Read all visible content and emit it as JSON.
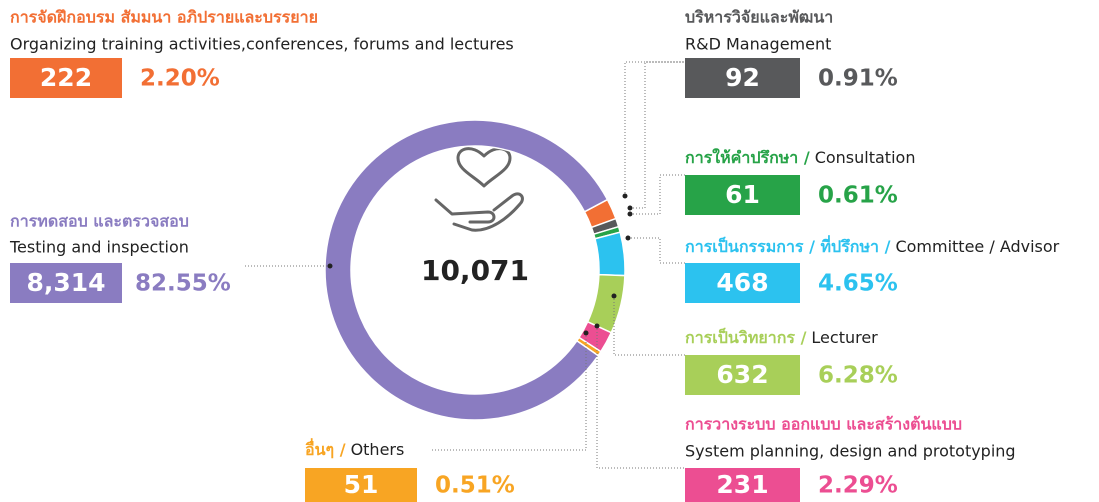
{
  "chart_data": {
    "type": "pie",
    "total": {
      "value": 10071,
      "label": "10,071"
    },
    "items": [
      {
        "name_th": "การจัดฝึกอบรม สัมมนา อภิปรายและบรรยาย",
        "name_en": "Organizing training activities,conferences, forums and lectures",
        "value": 222,
        "value_label": "222",
        "percent": 2.2,
        "percent_label": "2.20%",
        "color": "#f26f34"
      },
      {
        "name_th": "บริหารวิจัยและพัฒนา",
        "name_en": "R&D Management",
        "value": 92,
        "value_label": "92",
        "percent": 0.91,
        "percent_label": "0.91%",
        "color": "#58595b"
      },
      {
        "name_th": "การให้คำปรึกษา /",
        "name_en": "Consultation",
        "value": 61,
        "value_label": "61",
        "percent": 0.61,
        "percent_label": "0.61%",
        "color": "#27a348"
      },
      {
        "name_th": "การเป็นกรรมการ / ที่ปรึกษา /",
        "name_en": "Committee / Advisor",
        "value": 468,
        "value_label": "468",
        "percent": 4.65,
        "percent_label": "4.65%",
        "color": "#2cc2ef"
      },
      {
        "name_th": "การเป็นวิทยากร /",
        "name_en": "Lecturer",
        "value": 632,
        "value_label": "632",
        "percent": 6.28,
        "percent_label": "6.28%",
        "color": "#a8cf59"
      },
      {
        "name_th": "การวางระบบ ออกแบบ และสร้างต้นแบบ",
        "name_en": "System planning, design and prototyping",
        "value": 231,
        "value_label": "231",
        "percent": 2.29,
        "percent_label": "2.29%",
        "color": "#ec4e92"
      },
      {
        "name_th": "อื่นๆ /",
        "name_en": "Others",
        "value": 51,
        "value_label": "51",
        "percent": 0.51,
        "percent_label": "0.51%",
        "color": "#f8a523"
      },
      {
        "name_th": "การทดสอบ และตรวจสอบ",
        "name_en": "Testing and inspection",
        "value": 8314,
        "value_label": "8,314",
        "percent": 82.55,
        "percent_label": "82.55%",
        "color": "#8a7cc1"
      }
    ]
  }
}
